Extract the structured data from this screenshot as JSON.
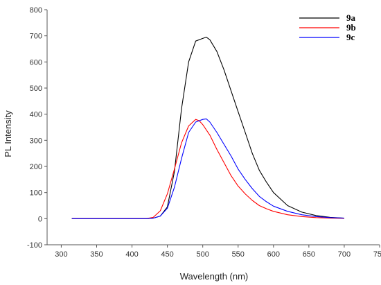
{
  "chart_data": {
    "type": "line",
    "xlabel": "Wavelength (nm)",
    "ylabel": "PL Intensity",
    "xlim": [
      280,
      750
    ],
    "ylim": [
      -100,
      800
    ],
    "x_ticks": [
      300,
      350,
      400,
      450,
      500,
      550,
      600,
      650,
      700,
      750
    ],
    "y_ticks": [
      -100,
      0,
      100,
      200,
      300,
      400,
      500,
      600,
      700,
      800
    ],
    "grid": false,
    "legend_position": "top-right",
    "series": [
      {
        "name": "9a",
        "color": "#000000",
        "x": [
          315,
          420,
          430,
          440,
          450,
          460,
          470,
          480,
          490,
          500,
          505,
          510,
          520,
          530,
          540,
          550,
          560,
          570,
          580,
          590,
          600,
          620,
          640,
          660,
          680,
          700
        ],
        "y": [
          0,
          0,
          2,
          10,
          45,
          180,
          420,
          600,
          680,
          690,
          695,
          685,
          640,
          570,
          490,
          410,
          330,
          250,
          185,
          140,
          100,
          50,
          25,
          12,
          5,
          2
        ]
      },
      {
        "name": "9b",
        "color": "#ff0000",
        "x": [
          315,
          420,
          430,
          440,
          450,
          460,
          470,
          480,
          490,
          495,
          500,
          510,
          520,
          530,
          540,
          550,
          560,
          570,
          580,
          590,
          600,
          620,
          640,
          660,
          680,
          700
        ],
        "y": [
          0,
          0,
          5,
          30,
          95,
          190,
          290,
          355,
          380,
          375,
          360,
          320,
          265,
          215,
          165,
          125,
          95,
          70,
          50,
          38,
          28,
          15,
          8,
          4,
          2,
          1
        ]
      },
      {
        "name": "9c",
        "color": "#0000ff",
        "x": [
          315,
          420,
          430,
          440,
          450,
          460,
          470,
          480,
          490,
          500,
          505,
          510,
          520,
          530,
          540,
          550,
          560,
          570,
          580,
          590,
          600,
          620,
          640,
          660,
          680,
          700
        ],
        "y": [
          0,
          0,
          2,
          10,
          40,
          120,
          230,
          330,
          370,
          380,
          382,
          370,
          330,
          285,
          240,
          190,
          150,
          115,
          85,
          65,
          48,
          28,
          15,
          8,
          4,
          2
        ]
      }
    ]
  }
}
